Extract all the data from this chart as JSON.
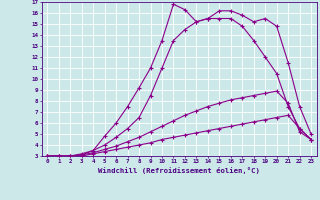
{
  "background_color": "#cce8e8",
  "grid_color": "#ffffff",
  "line_color": "#8b008b",
  "xlabel": "Windchill (Refroidissement éolien,°C)",
  "xlim": [
    -0.5,
    23.5
  ],
  "ylim": [
    3,
    17
  ],
  "xticks": [
    0,
    1,
    2,
    3,
    4,
    5,
    6,
    7,
    8,
    9,
    10,
    11,
    12,
    13,
    14,
    15,
    16,
    17,
    18,
    19,
    20,
    21,
    22,
    23
  ],
  "yticks": [
    3,
    4,
    5,
    6,
    7,
    8,
    9,
    10,
    11,
    12,
    13,
    14,
    15,
    16,
    17
  ],
  "line1_x": [
    0,
    1,
    2,
    3,
    4,
    5,
    6,
    7,
    8,
    9,
    10,
    11,
    12,
    13,
    14,
    15,
    16,
    17,
    18,
    19,
    20,
    21,
    22,
    23
  ],
  "line1_y": [
    3,
    3,
    3,
    3,
    3.2,
    3.4,
    3.6,
    3.8,
    4.0,
    4.2,
    4.5,
    4.7,
    4.9,
    5.1,
    5.3,
    5.5,
    5.7,
    5.9,
    6.1,
    6.3,
    6.5,
    6.7,
    5.5,
    4.5
  ],
  "line2_x": [
    0,
    1,
    2,
    3,
    4,
    5,
    6,
    7,
    8,
    9,
    10,
    11,
    12,
    13,
    14,
    15,
    16,
    17,
    18,
    19,
    20,
    21,
    22,
    23
  ],
  "line2_y": [
    3,
    3,
    3,
    3.1,
    3.3,
    3.6,
    3.9,
    4.3,
    4.7,
    5.2,
    5.7,
    6.2,
    6.7,
    7.1,
    7.5,
    7.8,
    8.1,
    8.3,
    8.5,
    8.7,
    8.9,
    7.8,
    5.2,
    4.5
  ],
  "line3_x": [
    0,
    1,
    2,
    3,
    4,
    5,
    6,
    7,
    8,
    9,
    10,
    11,
    12,
    13,
    14,
    15,
    16,
    17,
    18,
    19,
    20,
    21,
    22,
    23
  ],
  "line3_y": [
    3,
    3,
    3,
    3.1,
    3.5,
    4.0,
    4.7,
    5.5,
    6.5,
    8.5,
    11.0,
    13.5,
    14.5,
    15.2,
    15.5,
    15.5,
    15.5,
    14.8,
    13.5,
    12.0,
    10.5,
    7.5,
    5.5,
    4.5
  ],
  "line4_x": [
    0,
    1,
    2,
    3,
    4,
    5,
    6,
    7,
    8,
    9,
    10,
    11,
    12,
    13,
    14,
    15,
    16,
    17,
    18,
    19,
    20,
    21,
    22,
    23
  ],
  "line4_y": [
    3,
    3,
    3,
    3.2,
    3.5,
    4.8,
    6.0,
    7.5,
    9.2,
    11.0,
    13.5,
    16.8,
    16.3,
    15.2,
    15.5,
    16.2,
    16.2,
    15.8,
    15.2,
    15.5,
    14.8,
    11.5,
    7.5,
    5.0
  ]
}
